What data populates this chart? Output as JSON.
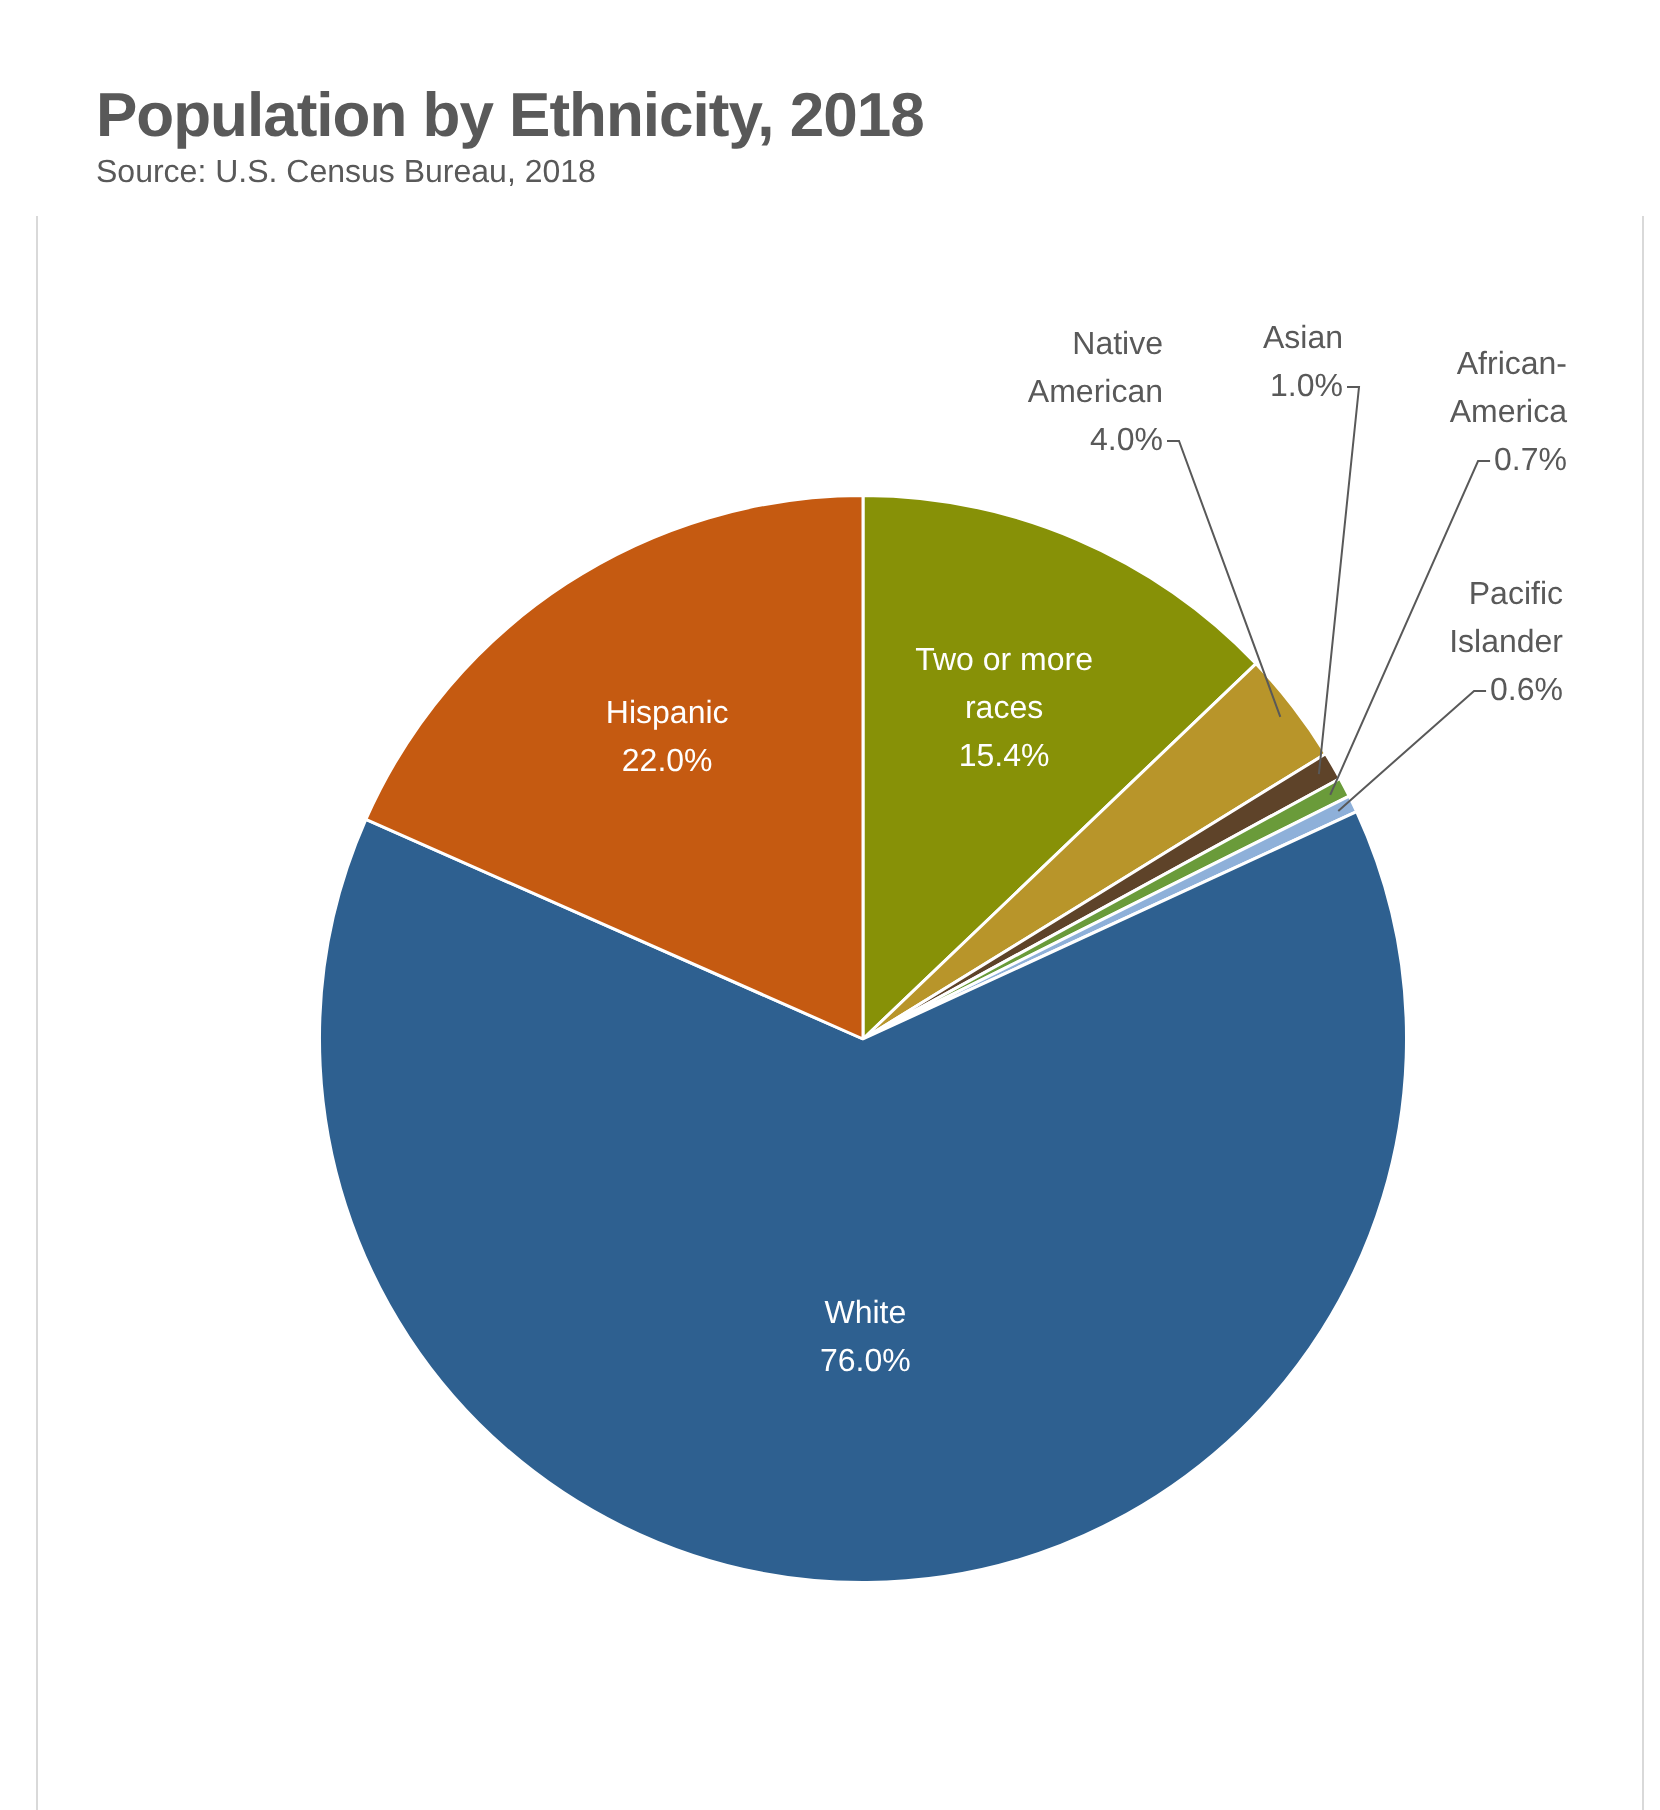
{
  "chart_data": {
    "type": "pie",
    "title": "Population by Ethnicity, 2018",
    "annotations": [
      "Source: U.S. Census Bureau, 2018"
    ],
    "categories": [
      "Two or more races",
      "Native American",
      "Asian",
      "African-America",
      "Pacific Islander",
      "White",
      "Hispanic"
    ],
    "values": [
      15.4,
      4.0,
      1.0,
      0.7,
      0.6,
      76.0,
      22.0
    ],
    "value_labels": [
      "15.4%",
      "4.0%",
      "1.0%",
      "0.7%",
      "0.6%",
      "76.0%",
      "22.0%"
    ],
    "colors": [
      "#879107",
      "#b8952a",
      "#5e4329",
      "#6a9b3a",
      "#8eb0d9",
      "#2e6090",
      "#c55a11"
    ],
    "legend": false
  }
}
